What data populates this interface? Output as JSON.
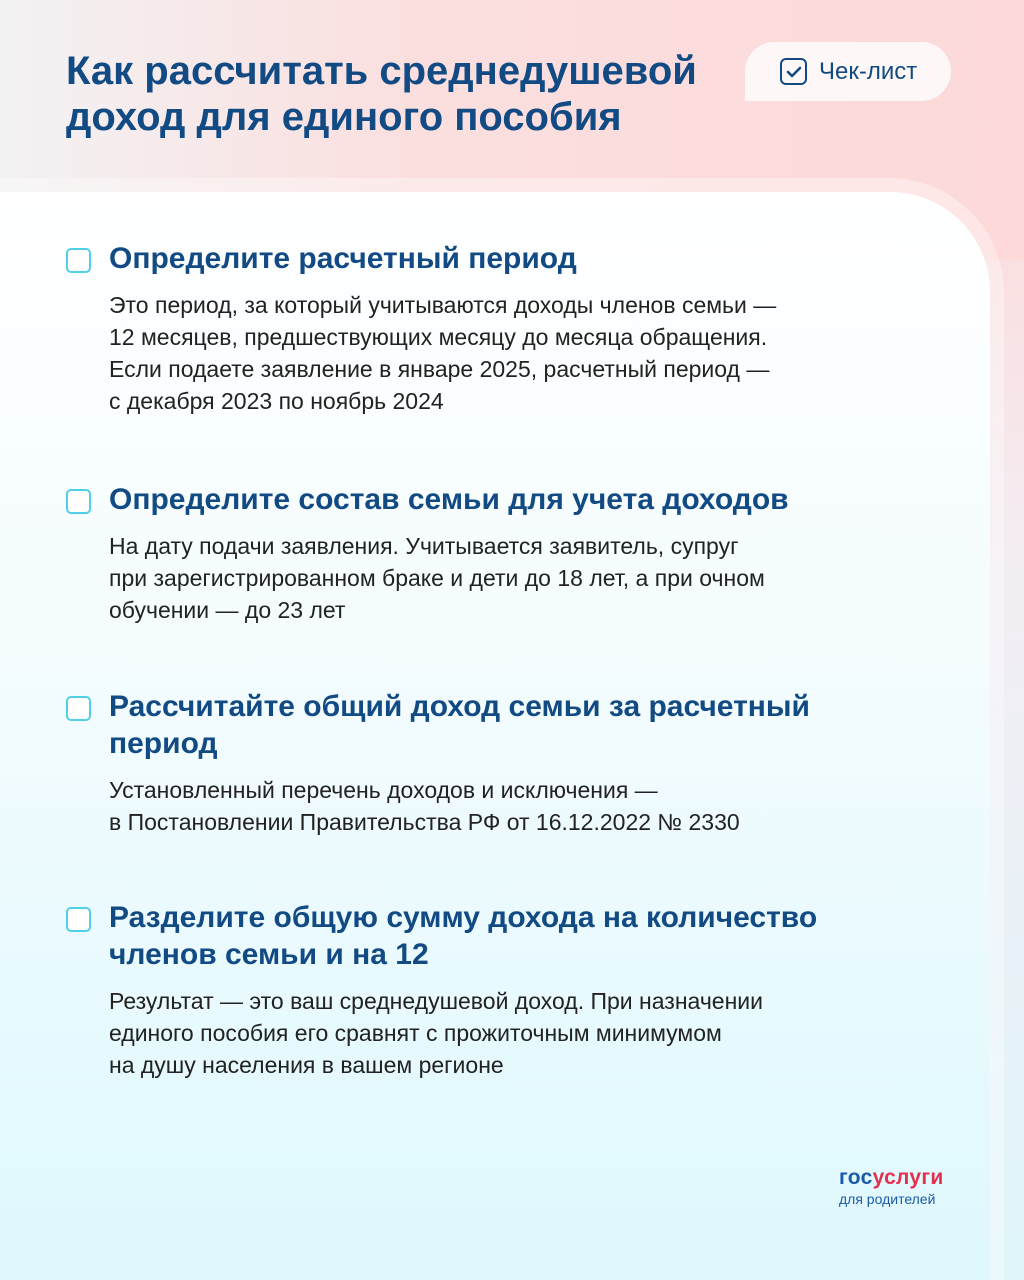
{
  "header": {
    "title": "Как рассчитать среднедушевой доход для единого пособия",
    "badge": "Чек-лист"
  },
  "items": [
    {
      "title": "Определите расчетный период",
      "text": "Это период, за который учитываются доходы членов семьи —\n12 месяцев, предшествующих месяцу до месяца обращения.\nЕсли подаете заявление в январе 2025, расчетный период —\nс декабря 2023 по ноябрь 2024"
    },
    {
      "title": "Определите состав семьи для учета доходов",
      "text": "На дату подачи заявления. Учитывается заявитель, супруг\nпри зарегистрированном браке и дети до 18 лет, а при очном\nобучении — до 23 лет"
    },
    {
      "title": "Рассчитайте общий доход семьи за расчетный период",
      "text": "Установленный перечень доходов и исключения —\nв Постановлении Правительства РФ от 16.12.2022 № 2330"
    },
    {
      "title": "Разделите общую сумму дохода на количество членов семьи и на 12",
      "text": "Результат — это ваш среднедушевой доход. При назначении\nединого пособия его сравнят с прожиточным минимумом\nна душу населения в вашем регионе"
    }
  ],
  "logo": {
    "part1": "гос",
    "part2": "услуги",
    "subtitle": "для родителей"
  },
  "colors": {
    "title": "#124a84",
    "checkbox": "#4fd0e8",
    "logo_red": "#e3304f"
  }
}
